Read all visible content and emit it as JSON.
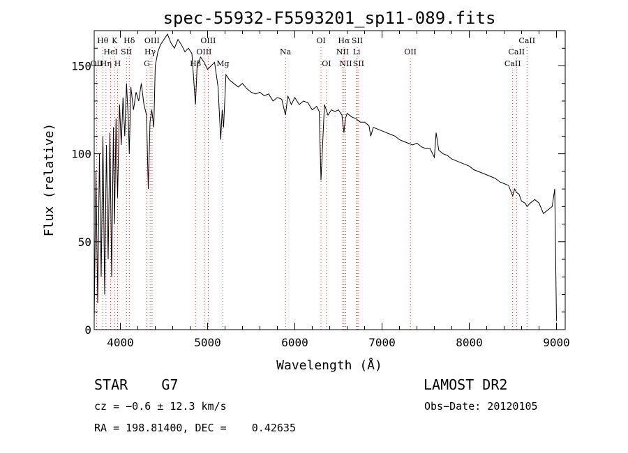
{
  "chart_data": {
    "type": "line",
    "title": "spec-55932-F5593201_sp11-089.fits",
    "xlabel": "Wavelength (Å)",
    "ylabel": "Flux (relative)",
    "xlim": [
      3700,
      9100
    ],
    "ylim": [
      0,
      170
    ],
    "xticks": [
      4000,
      5000,
      6000,
      7000,
      8000,
      9000
    ],
    "yticks": [
      0,
      50,
      100,
      150
    ],
    "series": [
      {
        "x": [
          3700,
          3720,
          3740,
          3760,
          3780,
          3800,
          3820,
          3840,
          3860,
          3880,
          3900,
          3920,
          3933,
          3950,
          3968,
          3990,
          4010,
          4030,
          4050,
          4070,
          4090,
          4102,
          4120,
          4150,
          4180,
          4210,
          4240,
          4270,
          4300,
          4320,
          4340,
          4360,
          4383,
          4400,
          4430,
          4460,
          4500,
          4540,
          4580,
          4620,
          4660,
          4700,
          4740,
          4780,
          4820,
          4861,
          4880,
          4920,
          4960,
          5000,
          5040,
          5080,
          5120,
          5150,
          5167,
          5183,
          5210,
          5250,
          5300,
          5350,
          5400,
          5450,
          5500,
          5550,
          5600,
          5650,
          5700,
          5750,
          5800,
          5850,
          5893,
          5920,
          5960,
          6000,
          6050,
          6100,
          6150,
          6200,
          6250,
          6280,
          6300,
          6340,
          6380,
          6420,
          6460,
          6500,
          6540,
          6563,
          6580,
          6600,
          6650,
          6700,
          6750,
          6800,
          6850,
          6870,
          6900,
          6950,
          7000,
          7050,
          7100,
          7150,
          7200,
          7250,
          7300,
          7350,
          7400,
          7450,
          7500,
          7550,
          7600,
          7620,
          7650,
          7700,
          7750,
          7800,
          7850,
          7900,
          7950,
          8000,
          8050,
          8100,
          8150,
          8200,
          8250,
          8300,
          8350,
          8400,
          8450,
          8498,
          8520,
          8542,
          8570,
          8600,
          8640,
          8662,
          8700,
          8750,
          8800,
          8850,
          8900,
          8950,
          8980,
          9000
        ],
        "y": [
          5,
          90,
          15,
          100,
          30,
          110,
          20,
          105,
          40,
          112,
          30,
          115,
          60,
          120,
          75,
          128,
          105,
          132,
          110,
          140,
          120,
          100,
          138,
          125,
          135,
          130,
          140,
          128,
          122,
          80,
          118,
          125,
          115,
          150,
          158,
          162,
          165,
          168,
          163,
          160,
          165,
          162,
          158,
          160,
          157,
          128,
          150,
          155,
          152,
          148,
          150,
          152,
          138,
          108,
          125,
          115,
          145,
          142,
          140,
          138,
          140,
          137,
          135,
          134,
          135,
          133,
          134,
          130,
          132,
          131,
          122,
          133,
          128,
          132,
          128,
          130,
          129,
          125,
          127,
          124,
          85,
          128,
          122,
          125,
          124,
          125,
          122,
          112,
          120,
          123,
          121,
          120,
          118,
          118,
          116,
          110,
          115,
          114,
          113,
          112,
          111,
          110,
          108,
          107,
          106,
          105,
          106,
          104,
          103,
          103,
          98,
          112,
          102,
          100,
          99,
          97,
          96,
          95,
          94,
          93,
          91,
          90,
          89,
          88,
          87,
          86,
          84,
          83,
          82,
          76,
          80,
          78,
          77,
          73,
          72,
          70,
          72,
          74,
          72,
          66,
          68,
          70,
          80,
          5
        ]
      }
    ],
    "lines": [
      {
        "label": "Hθ",
        "x": 3798,
        "row": 0
      },
      {
        "label": "K",
        "x": 3934,
        "row": 0
      },
      {
        "label": "Hδ",
        "x": 4102,
        "row": 0
      },
      {
        "label": "OIII",
        "x": 4363,
        "row": 0
      },
      {
        "label": "OIII",
        "x": 5007,
        "row": 0
      },
      {
        "label": "OI",
        "x": 6300,
        "row": 0
      },
      {
        "label": "Hα",
        "x": 6563,
        "row": 0
      },
      {
        "label": "SII",
        "x": 6716,
        "row": 0
      },
      {
        "label": "CaII",
        "x": 8662,
        "row": 0
      },
      {
        "label": "HeI",
        "x": 3889,
        "row": 1
      },
      {
        "label": "SII",
        "x": 4070,
        "row": 1
      },
      {
        "label": "Hγ",
        "x": 4341,
        "row": 1
      },
      {
        "label": "OIII",
        "x": 4959,
        "row": 1
      },
      {
        "label": "Na",
        "x": 5893,
        "row": 1
      },
      {
        "label": "NII",
        "x": 6548,
        "row": 1
      },
      {
        "label": "Li",
        "x": 6708,
        "row": 1
      },
      {
        "label": "OII",
        "x": 7325,
        "row": 1
      },
      {
        "label": "CaII",
        "x": 8542,
        "row": 1
      },
      {
        "label": "OII",
        "x": 3727,
        "row": 2
      },
      {
        "label": "Hη",
        "x": 3835,
        "row": 2
      },
      {
        "label": "H",
        "x": 3968,
        "row": 2
      },
      {
        "label": "G",
        "x": 4304,
        "row": 2
      },
      {
        "label": "Hβ",
        "x": 4861,
        "row": 2
      },
      {
        "label": "Mg",
        "x": 5175,
        "row": 2
      },
      {
        "label": "OI",
        "x": 6363,
        "row": 2
      },
      {
        "label": "NII",
        "x": 6584,
        "row": 2
      },
      {
        "label": "SII",
        "x": 6731,
        "row": 2
      },
      {
        "label": "CaII",
        "x": 8498,
        "row": 2
      }
    ]
  },
  "footer": {
    "object_class": "STAR    G7",
    "survey": "LAMOST DR2",
    "cz": "cz = −0.6 ± 12.3 km/s",
    "obs_date": "Obs−Date: 20120105",
    "radec": "RA = 198.81400, DEC =    0.42635"
  }
}
